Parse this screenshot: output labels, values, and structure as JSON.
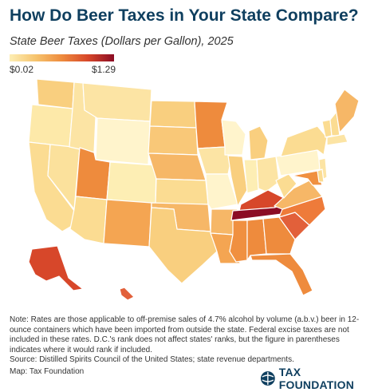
{
  "title": "How Do Beer Taxes in Your State Compare?",
  "subtitle": "State Beer Taxes (Dollars per Gallon), 2025",
  "legend": {
    "min_label": "$0.02",
    "max_label": "$1.29",
    "colors": [
      "#fdeeb4",
      "#f6c46e",
      "#ee8b3d",
      "#d7472a",
      "#8b0c24"
    ]
  },
  "map": {
    "state_colors": {
      "WA": "#f9cf7f",
      "OR": "#fde9a9",
      "CA": "#fbdc92",
      "NV": "#fbe19c",
      "ID": "#fce4a4",
      "MT": "#fce4a4",
      "WY": "#fff4cc",
      "UT": "#ee8b3d",
      "AZ": "#fbdc92",
      "CO": "#fdeeb4",
      "NM": "#f4a552",
      "ND": "#f9cf7f",
      "SD": "#f9c878",
      "NE": "#f6b767",
      "KS": "#fbdc92",
      "OK": "#f6b767",
      "TX": "#f9cf7f",
      "MN": "#ee8b3d",
      "IA": "#fce4a4",
      "MO": "#fff4cc",
      "AR": "#f6b767",
      "LA": "#f4a552",
      "WI": "#fff4cc",
      "IL": "#f9cf7f",
      "MI": "#f9cf7f",
      "IN": "#fdeeb4",
      "OH": "#fce4a4",
      "KY": "#d7472a",
      "TN": "#8b0c24",
      "MS": "#f09040",
      "AL": "#ee8b3d",
      "GA": "#ee8b3d",
      "FL": "#ee8b3d",
      "SC": "#e2603a",
      "NC": "#ee7b3a",
      "VA": "#f6b767",
      "WV": "#fbdc92",
      "PA": "#fff4cc",
      "NY": "#fbdc92",
      "VT": "#fbdc92",
      "NH": "#fbdc92",
      "ME": "#f6b767",
      "MA": "#fce4a4",
      "NJ": "#fce4a4",
      "MD": "#f09040",
      "DE": "#fbdc92",
      "AK": "#d7472a",
      "HI": "#e2603a"
    }
  },
  "note": "Note: Rates are those applicable to off-premise sales of 4.7% alcohol by volume (a.b.v.) beer in 12-ounce containers which have been imported from outside the state. Federal excise taxes are not included in these rates. D.C.'s rank does not affect states' ranks, but the figure in parentheses indicates where it would rank if included.",
  "source": "Source: Distilled Spirits Council of the United States; state revenue departments.",
  "credit": "Map: Tax Foundation",
  "brand": "TAX FOUNDATION"
}
